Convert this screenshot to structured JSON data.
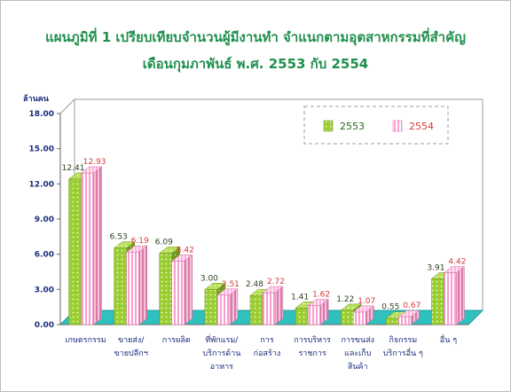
{
  "chart_data": {
    "type": "bar",
    "title": "แผนภูมิที่ 1 เปรียบเทียบจำนวนผู้มีงานทำ จำแนกตามอุตสาหกรรมที่สำคัญ",
    "subtitle": "เดือนกุมภาพันธ์  พ.ศ. 2553 กับ 2554",
    "ylabel": "ล้านคน",
    "xlabel": "",
    "ylim": [
      0,
      18
    ],
    "yticks": [
      "0.00",
      "3.00",
      "6.00",
      "9.00",
      "12.00",
      "15.00",
      "18.00"
    ],
    "categories": [
      [
        "เกษตรกรรม"
      ],
      [
        "ขายส่ง/",
        "ขายปลีกฯ"
      ],
      [
        "การผลิต"
      ],
      [
        "ที่พักแรม/",
        "บริการด้าน",
        "อาหาร"
      ],
      [
        "การ",
        "ก่อสร้าง"
      ],
      [
        "การบริหาร",
        "ราชการ"
      ],
      [
        "การขนส่ง",
        "และเก็บ",
        "สินค้า"
      ],
      [
        "กิจกรรม",
        "บริการอื่น ๆ"
      ],
      [
        "อื่น ๆ"
      ]
    ],
    "series": [
      {
        "name": "2553",
        "values": [
          12.41,
          6.53,
          6.09,
          3.0,
          2.48,
          1.41,
          1.22,
          0.55,
          3.91
        ],
        "labels": [
          "12.41",
          "6.53",
          "6.09",
          "3.00",
          "2.48",
          "1.41",
          "1.22",
          "0.55",
          "3.91"
        ]
      },
      {
        "name": "2554",
        "values": [
          12.93,
          6.19,
          5.42,
          2.51,
          2.72,
          1.62,
          1.07,
          0.67,
          4.42
        ],
        "labels": [
          "12.93",
          "6.19",
          "5.42",
          "2.51",
          "2.72",
          "1.62",
          "1.07",
          "0.67",
          "4.42"
        ]
      }
    ],
    "legend_position": "top-right",
    "grid": false,
    "colors": {
      "series_a": "#9acd32",
      "series_b": "#ffb6d9",
      "floor": "#2fc0c0"
    }
  }
}
